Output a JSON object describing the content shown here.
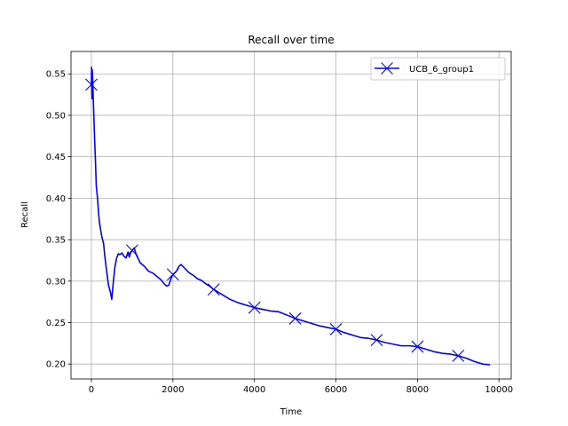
{
  "chart_data": {
    "type": "line",
    "title": "Recall over time",
    "xlabel": "Time",
    "ylabel": "Recall",
    "xlim": [
      -500,
      10300
    ],
    "ylim": [
      0.182,
      0.577
    ],
    "xticks": [
      0,
      2000,
      4000,
      6000,
      8000,
      10000
    ],
    "yticks": [
      0.2,
      0.25,
      0.3,
      0.35,
      0.4,
      0.45,
      0.5,
      0.55
    ],
    "grid": true,
    "legend_position": "top-right",
    "series": [
      {
        "name": "UCB_6_group1",
        "color": "#0000ff",
        "marker": "x",
        "x": [
          0,
          5,
          10,
          15,
          20,
          30,
          40,
          60,
          80,
          100,
          120,
          150,
          180,
          200,
          250,
          300,
          330,
          380,
          420,
          460,
          500,
          540,
          580,
          620,
          660,
          700,
          750,
          800,
          850,
          900,
          930,
          960,
          1000,
          1050,
          1100,
          1200,
          1300,
          1400,
          1500,
          1600,
          1700,
          1800,
          1850,
          1900,
          1950,
          2000,
          2050,
          2100,
          2150,
          2200,
          2300,
          2400,
          2500,
          2600,
          2700,
          2800,
          2900,
          3000,
          3200,
          3400,
          3600,
          3800,
          4000,
          4200,
          4400,
          4600,
          4800,
          5000,
          5200,
          5400,
          5600,
          5800,
          6000,
          6200,
          6400,
          6600,
          6800,
          7000,
          7200,
          7400,
          7600,
          7800,
          8000,
          8200,
          8400,
          8600,
          8800,
          9000,
          9200,
          9400,
          9600,
          9780
        ],
        "y": [
          0.537,
          0.558,
          0.53,
          0.52,
          0.555,
          0.545,
          0.53,
          0.5,
          0.47,
          0.445,
          0.415,
          0.4,
          0.38,
          0.37,
          0.355,
          0.345,
          0.33,
          0.31,
          0.295,
          0.288,
          0.278,
          0.3,
          0.318,
          0.328,
          0.333,
          0.332,
          0.334,
          0.33,
          0.328,
          0.335,
          0.329,
          0.334,
          0.337,
          0.34,
          0.332,
          0.322,
          0.318,
          0.312,
          0.31,
          0.306,
          0.302,
          0.296,
          0.294,
          0.295,
          0.303,
          0.308,
          0.31,
          0.313,
          0.318,
          0.32,
          0.315,
          0.31,
          0.307,
          0.303,
          0.301,
          0.297,
          0.294,
          0.29,
          0.284,
          0.278,
          0.274,
          0.271,
          0.268,
          0.266,
          0.264,
          0.263,
          0.259,
          0.255,
          0.252,
          0.249,
          0.246,
          0.244,
          0.242,
          0.238,
          0.235,
          0.232,
          0.231,
          0.229,
          0.226,
          0.224,
          0.222,
          0.222,
          0.221,
          0.218,
          0.215,
          0.213,
          0.212,
          0.21,
          0.207,
          0.203,
          0.2,
          0.199
        ]
      }
    ],
    "markers": {
      "x": [
        0,
        1000,
        2000,
        3000,
        4000,
        5000,
        6000,
        7000,
        8000,
        9000
      ],
      "y": [
        0.537,
        0.337,
        0.308,
        0.29,
        0.268,
        0.255,
        0.242,
        0.229,
        0.221,
        0.21
      ]
    }
  }
}
